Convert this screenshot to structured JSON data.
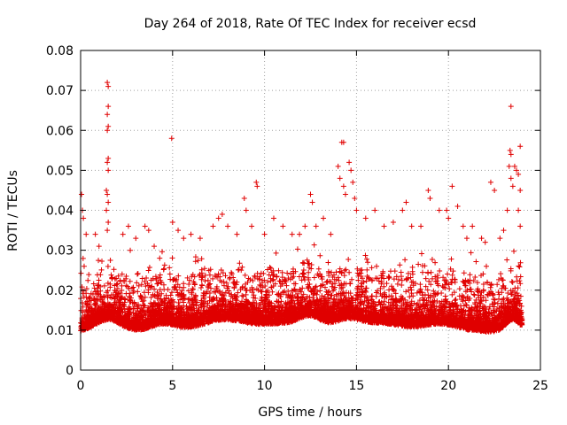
{
  "chart_data": {
    "type": "scatter",
    "title": "Day 264 of 2018, Rate Of TEC Index for receiver ecsd",
    "xlabel": "GPS time / hours",
    "ylabel": "ROTI / TECUs",
    "xlim": [
      0,
      25
    ],
    "ylim": [
      0,
      0.08
    ],
    "xticks": [
      0,
      5,
      10,
      15,
      20,
      25
    ],
    "xtick_labels": [
      "0",
      "5",
      "10",
      "15",
      "20",
      "25"
    ],
    "yticks": [
      0,
      0.01,
      0.02,
      0.03,
      0.04,
      0.05,
      0.06,
      0.07,
      0.08
    ],
    "ytick_labels": [
      "0",
      "0.01",
      "0.02",
      "0.03",
      "0.04",
      "0.05",
      "0.06",
      "0.07",
      "0.08"
    ],
    "grid": true,
    "marker": "plus",
    "color": "#e00000",
    "series": [
      {
        "name": "ROTI",
        "points": [
          [
            0.05,
            0.044
          ],
          [
            0.1,
            0.04
          ],
          [
            0.15,
            0.038
          ],
          [
            0.3,
            0.034
          ],
          [
            0.8,
            0.034
          ],
          [
            1.0,
            0.031
          ],
          [
            1.45,
            0.072
          ],
          [
            1.5,
            0.071
          ],
          [
            1.5,
            0.066
          ],
          [
            1.45,
            0.064
          ],
          [
            1.5,
            0.061
          ],
          [
            1.45,
            0.06
          ],
          [
            1.5,
            0.053
          ],
          [
            1.45,
            0.052
          ],
          [
            1.5,
            0.05
          ],
          [
            1.4,
            0.045
          ],
          [
            1.45,
            0.044
          ],
          [
            1.5,
            0.042
          ],
          [
            1.4,
            0.04
          ],
          [
            1.5,
            0.037
          ],
          [
            1.45,
            0.035
          ],
          [
            2.3,
            0.034
          ],
          [
            2.6,
            0.036
          ],
          [
            3.0,
            0.033
          ],
          [
            3.5,
            0.036
          ],
          [
            3.7,
            0.035
          ],
          [
            4.0,
            0.031
          ],
          [
            4.3,
            0.028
          ],
          [
            4.95,
            0.058
          ],
          [
            5.0,
            0.037
          ],
          [
            5.3,
            0.035
          ],
          [
            5.6,
            0.033
          ],
          [
            6.0,
            0.034
          ],
          [
            6.5,
            0.033
          ],
          [
            7.2,
            0.036
          ],
          [
            7.5,
            0.038
          ],
          [
            7.7,
            0.039
          ],
          [
            8.0,
            0.036
          ],
          [
            8.5,
            0.034
          ],
          [
            8.9,
            0.043
          ],
          [
            9.0,
            0.04
          ],
          [
            9.3,
            0.036
          ],
          [
            9.55,
            0.047
          ],
          [
            9.6,
            0.046
          ],
          [
            10.0,
            0.034
          ],
          [
            10.5,
            0.038
          ],
          [
            11.0,
            0.036
          ],
          [
            11.5,
            0.034
          ],
          [
            11.9,
            0.034
          ],
          [
            12.2,
            0.036
          ],
          [
            12.5,
            0.044
          ],
          [
            12.6,
            0.042
          ],
          [
            12.8,
            0.036
          ],
          [
            13.2,
            0.038
          ],
          [
            13.6,
            0.034
          ],
          [
            14.2,
            0.057
          ],
          [
            14.3,
            0.057
          ],
          [
            14.0,
            0.051
          ],
          [
            14.1,
            0.048
          ],
          [
            14.3,
            0.046
          ],
          [
            14.4,
            0.044
          ],
          [
            14.6,
            0.052
          ],
          [
            14.7,
            0.05
          ],
          [
            14.8,
            0.047
          ],
          [
            14.9,
            0.043
          ],
          [
            15.0,
            0.04
          ],
          [
            15.5,
            0.038
          ],
          [
            16.0,
            0.04
          ],
          [
            16.5,
            0.036
          ],
          [
            17.0,
            0.037
          ],
          [
            17.5,
            0.04
          ],
          [
            17.7,
            0.042
          ],
          [
            18.0,
            0.036
          ],
          [
            18.5,
            0.036
          ],
          [
            18.9,
            0.045
          ],
          [
            19.0,
            0.043
          ],
          [
            19.5,
            0.04
          ],
          [
            19.9,
            0.04
          ],
          [
            20.0,
            0.038
          ],
          [
            20.2,
            0.046
          ],
          [
            20.5,
            0.041
          ],
          [
            20.8,
            0.036
          ],
          [
            21.0,
            0.033
          ],
          [
            21.3,
            0.036
          ],
          [
            21.8,
            0.033
          ],
          [
            22.0,
            0.032
          ],
          [
            22.3,
            0.047
          ],
          [
            22.5,
            0.045
          ],
          [
            22.8,
            0.033
          ],
          [
            23.0,
            0.035
          ],
          [
            23.2,
            0.04
          ],
          [
            23.4,
            0.066
          ],
          [
            23.35,
            0.055
          ],
          [
            23.4,
            0.054
          ],
          [
            23.3,
            0.051
          ],
          [
            23.4,
            0.048
          ],
          [
            23.5,
            0.046
          ],
          [
            23.6,
            0.051
          ],
          [
            23.7,
            0.05
          ],
          [
            23.8,
            0.049
          ],
          [
            23.9,
            0.056
          ],
          [
            23.9,
            0.045
          ],
          [
            23.8,
            0.04
          ],
          [
            23.9,
            0.036
          ]
        ]
      }
    ]
  }
}
